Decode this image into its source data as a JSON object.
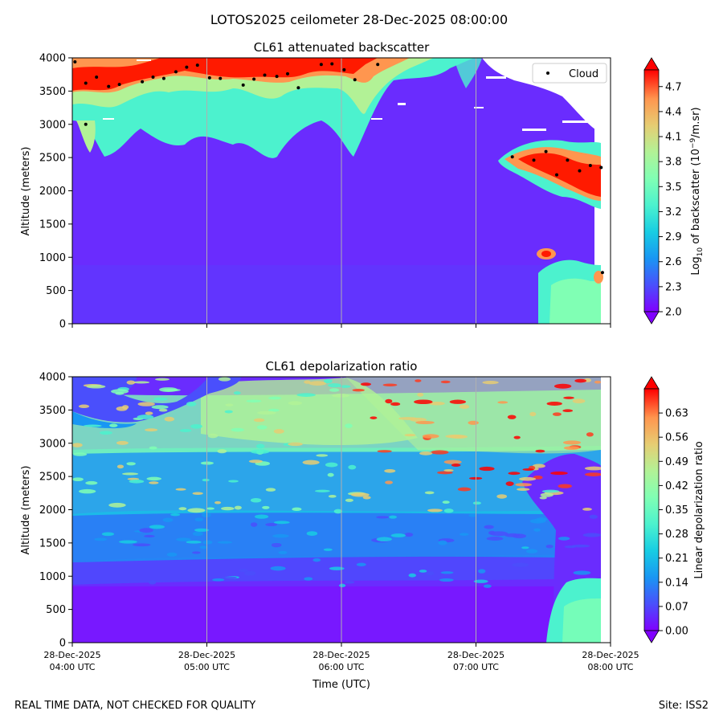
{
  "figure": {
    "suptitle": "LOTOS2025 ceilometer 28-Dec-2025 08:00:00",
    "footer_left": "REAL TIME DATA, NOT CHECKED FOR QUALITY",
    "footer_right": "Site: ISS2"
  },
  "chart_data": [
    {
      "type": "heatmap",
      "title": "CL61 attenuated backscatter",
      "xlabel": "",
      "ylabel": "Altitude (meters)",
      "xlim": [
        0,
        4
      ],
      "ylim": [
        0,
        4000
      ],
      "yticks": [
        0,
        500,
        1000,
        1500,
        2000,
        2500,
        3000,
        3500,
        4000
      ],
      "colorbar": {
        "label": "Log10 of backscatter (10^-9/m.sr)",
        "label_parts": {
          "pre": "Log",
          "sub": "10",
          "mid": " of backscatter (10",
          "sup": "−9",
          "post": "/m.sr)"
        },
        "vmin": 2.0,
        "vmax": 4.9,
        "ticks": [
          "2.0",
          "2.3",
          "2.6",
          "2.9",
          "3.2",
          "3.5",
          "3.8",
          "4.1",
          "4.4",
          "4.7"
        ]
      },
      "legend": {
        "label": "Cloud",
        "position": "top-right"
      },
      "cloud_points": [
        {
          "t": 0.02,
          "alt": 3940
        },
        {
          "t": 0.1,
          "alt": 3620
        },
        {
          "t": 0.1,
          "alt": 3000
        },
        {
          "t": 0.18,
          "alt": 3710
        },
        {
          "t": 0.27,
          "alt": 3570
        },
        {
          "t": 0.35,
          "alt": 3600
        },
        {
          "t": 0.52,
          "alt": 3640
        },
        {
          "t": 0.6,
          "alt": 3710
        },
        {
          "t": 0.68,
          "alt": 3690
        },
        {
          "t": 0.77,
          "alt": 3790
        },
        {
          "t": 0.85,
          "alt": 3860
        },
        {
          "t": 0.93,
          "alt": 3890
        },
        {
          "t": 1.02,
          "alt": 3700
        },
        {
          "t": 1.1,
          "alt": 3690
        },
        {
          "t": 1.27,
          "alt": 3590
        },
        {
          "t": 1.35,
          "alt": 3680
        },
        {
          "t": 1.43,
          "alt": 3740
        },
        {
          "t": 1.52,
          "alt": 3720
        },
        {
          "t": 1.6,
          "alt": 3760
        },
        {
          "t": 1.68,
          "alt": 3550
        },
        {
          "t": 1.85,
          "alt": 3900
        },
        {
          "t": 1.93,
          "alt": 3910
        },
        {
          "t": 2.02,
          "alt": 3820
        },
        {
          "t": 2.1,
          "alt": 3670
        },
        {
          "t": 2.27,
          "alt": 3900
        },
        {
          "t": 3.27,
          "alt": 2510
        },
        {
          "t": 3.43,
          "alt": 2460
        },
        {
          "t": 3.52,
          "alt": 2590
        },
        {
          "t": 3.6,
          "alt": 2240
        },
        {
          "t": 3.68,
          "alt": 2460
        },
        {
          "t": 3.77,
          "alt": 2300
        },
        {
          "t": 3.85,
          "alt": 2380
        },
        {
          "t": 3.93,
          "alt": 2350
        },
        {
          "t": 3.94,
          "alt": 770
        }
      ]
    },
    {
      "type": "heatmap",
      "title": "CL61 depolarization ratio",
      "xlabel": "Time (UTC)",
      "ylabel": "Altitude (meters)",
      "xlim": [
        0,
        4
      ],
      "ylim": [
        0,
        4000
      ],
      "yticks": [
        0,
        500,
        1000,
        1500,
        2000,
        2500,
        3000,
        3500,
        4000
      ],
      "xticks": [
        {
          "t": 0,
          "date": "28-Dec-2025",
          "time": "04:00 UTC"
        },
        {
          "t": 1,
          "date": "28-Dec-2025",
          "time": "05:00 UTC"
        },
        {
          "t": 2,
          "date": "28-Dec-2025",
          "time": "06:00 UTC"
        },
        {
          "t": 3,
          "date": "28-Dec-2025",
          "time": "07:00 UTC"
        },
        {
          "t": 4,
          "date": "28-Dec-2025",
          "time": "08:00 UTC"
        }
      ],
      "colorbar": {
        "label": "Linear depolarization ratio",
        "vmin": 0.0,
        "vmax": 0.7,
        "ticks": [
          "0.00",
          "0.07",
          "0.14",
          "0.21",
          "0.28",
          "0.35",
          "0.42",
          "0.49",
          "0.56",
          "0.63"
        ]
      }
    }
  ]
}
